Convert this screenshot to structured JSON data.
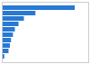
{
  "chart_data": {
    "type": "bar",
    "orientation": "horizontal",
    "values": [
      3800,
      1750,
      1150,
      870,
      680,
      580,
      480,
      420,
      350,
      130
    ],
    "color": "#2878d6",
    "xlim": [
      0,
      4500
    ],
    "tick_labels": false
  }
}
